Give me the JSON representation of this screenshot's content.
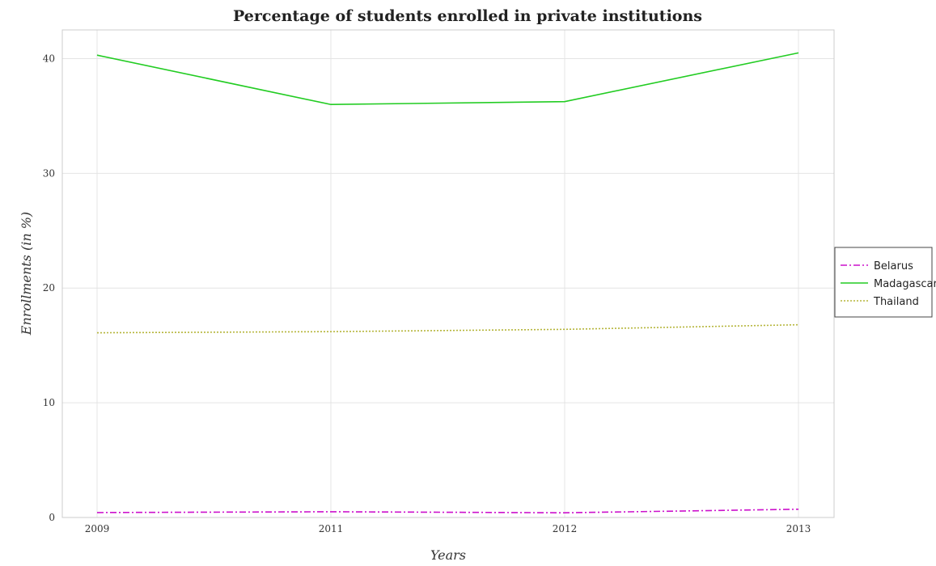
{
  "chart_data": {
    "type": "line",
    "title": "Percentage of students enrolled in private institutions",
    "xlabel": "Years",
    "ylabel": "Enrollments (in %)",
    "categories": [
      "2009",
      "2011",
      "2012",
      "2013"
    ],
    "ylim": [
      0,
      42.5
    ],
    "yticks": [
      0,
      10,
      20,
      30,
      40
    ],
    "grid": true,
    "legend_position": "right",
    "series": [
      {
        "name": "Belarus",
        "color": "#cc11cc",
        "dash": "dash-dot",
        "values": [
          0.43,
          0.5,
          0.41,
          0.72
        ]
      },
      {
        "name": "Madagascar",
        "color": "#22cc22",
        "dash": "solid",
        "values": [
          40.3,
          36.0,
          36.25,
          40.5
        ]
      },
      {
        "name": "Thailand",
        "color": "#b5b53a",
        "dash": "dotted",
        "values": [
          16.1,
          16.2,
          16.4,
          16.8
        ]
      }
    ]
  }
}
